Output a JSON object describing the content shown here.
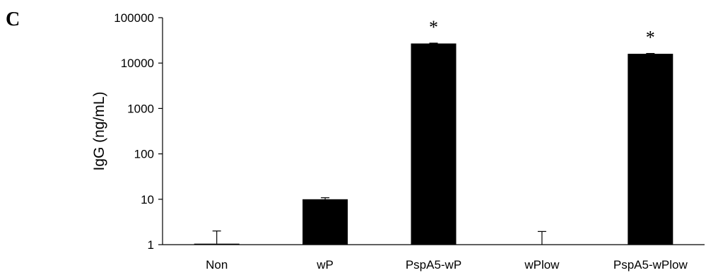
{
  "panel_label": "C",
  "chart_data": {
    "type": "bar",
    "scale": "log",
    "ylabel": "IgG (ng/mL)",
    "xlabel": "",
    "ylim": [
      1,
      100000
    ],
    "yticks": [
      "1",
      "10",
      "100",
      "1000",
      "10000",
      "100000"
    ],
    "categories": [
      "Non",
      "wP",
      "PspA5-wP",
      "wPlow",
      "PspA5-wPlow"
    ],
    "values": [
      1.05,
      10,
      27000,
      1,
      16000
    ],
    "error_upper": [
      2.0,
      10.8,
      27500,
      1.95,
      16300
    ],
    "annotations": [
      "",
      "",
      "*",
      "",
      "*"
    ],
    "grid": false,
    "bar_color": "#000000"
  }
}
